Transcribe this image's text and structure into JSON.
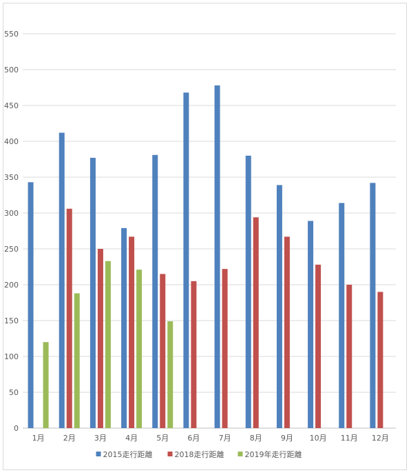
{
  "chart_data": {
    "type": "bar",
    "title": "",
    "xlabel": "",
    "ylabel": "",
    "ylim": [
      0,
      550
    ],
    "yticks": [
      0,
      50,
      100,
      150,
      200,
      250,
      300,
      350,
      400,
      450,
      500,
      550
    ],
    "grid": true,
    "legend_position": "bottom",
    "categories": [
      "1月",
      "2月",
      "3月",
      "4月",
      "5月",
      "6月",
      "7月",
      "8月",
      "9月",
      "10月",
      "11月",
      "12月"
    ],
    "series": [
      {
        "name": "2015走行距離",
        "color": "#4f81bd",
        "values": [
          343,
          412,
          377,
          279,
          381,
          468,
          478,
          380,
          339,
          289,
          314,
          342
        ]
      },
      {
        "name": "2018走行距離",
        "color": "#c0504d",
        "values": [
          null,
          306,
          250,
          267,
          215,
          205,
          222,
          294,
          267,
          228,
          200,
          190
        ]
      },
      {
        "name": "2019年走行距離",
        "color": "#9bbb59",
        "values": [
          120,
          188,
          233,
          221,
          149,
          null,
          null,
          null,
          null,
          null,
          null,
          null
        ]
      }
    ]
  }
}
